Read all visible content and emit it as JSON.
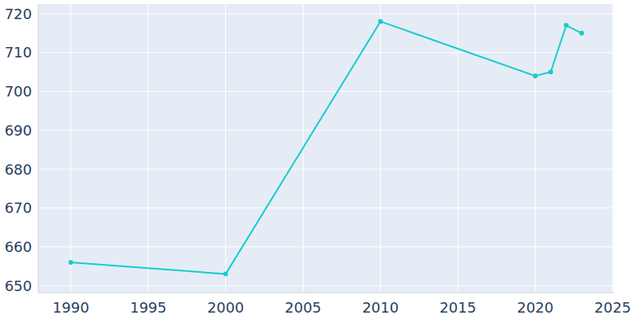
{
  "chart_data": {
    "type": "line",
    "x": [
      1990,
      2000,
      2010,
      2020,
      2021,
      2022,
      2023
    ],
    "values": [
      656,
      653,
      718,
      704,
      705,
      717,
      715
    ],
    "color": "#17cccc",
    "marker": "circle",
    "xlim": [
      1987.9,
      2025.05
    ],
    "ylim": [
      648.2,
      722.5
    ],
    "xticks": [
      1990,
      1995,
      2000,
      2005,
      2010,
      2015,
      2020,
      2025
    ],
    "yticks": [
      650,
      660,
      670,
      680,
      690,
      700,
      710,
      720
    ],
    "grid": true
  }
}
